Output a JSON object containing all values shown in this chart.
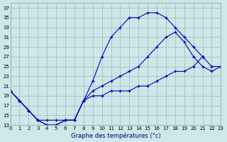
{
  "bg_color": "#cce8e8",
  "grid_color": "#99bbbb",
  "line_color": "#0000bb",
  "xlabel": "Graphe des températures (°c)",
  "ylim": [
    13,
    38
  ],
  "xlim": [
    0,
    23
  ],
  "yticks": [
    13,
    15,
    17,
    19,
    21,
    23,
    25,
    27,
    29,
    31,
    33,
    35,
    37
  ],
  "xticks": [
    0,
    1,
    2,
    3,
    4,
    5,
    6,
    7,
    8,
    9,
    10,
    11,
    12,
    13,
    14,
    15,
    16,
    17,
    18,
    19,
    20,
    21,
    22,
    23
  ],
  "line1_x": [
    0,
    1,
    2,
    3,
    4,
    5,
    6,
    7,
    8,
    9,
    10,
    11,
    12,
    13,
    14,
    15,
    16,
    17,
    18,
    19,
    20,
    21
  ],
  "line1_y": [
    20,
    18,
    16,
    14,
    13,
    13,
    14,
    14,
    18,
    22,
    27,
    31,
    33,
    35,
    35,
    36,
    36,
    35,
    33,
    31,
    29,
    27
  ],
  "line2_x": [
    0,
    1,
    2,
    3,
    4,
    5,
    6,
    7,
    8,
    9,
    10,
    11,
    12,
    13,
    14,
    15,
    16,
    17,
    18,
    19,
    20,
    21,
    22,
    23
  ],
  "line2_y": [
    20,
    18,
    16,
    14,
    13,
    13,
    14,
    14,
    18,
    20,
    21,
    22,
    23,
    24,
    25,
    27,
    29,
    31,
    32,
    30,
    27,
    25,
    24,
    25
  ],
  "line3_x": [
    0,
    1,
    2,
    3,
    4,
    5,
    6,
    7,
    8,
    9,
    10,
    11,
    12,
    13,
    14,
    15,
    16,
    17,
    18,
    19,
    20,
    21,
    22,
    23
  ],
  "line3_y": [
    20,
    18,
    16,
    14,
    14,
    14,
    14,
    14,
    18,
    19,
    19,
    20,
    20,
    20,
    21,
    21,
    22,
    23,
    24,
    24,
    25,
    27,
    25,
    25
  ]
}
